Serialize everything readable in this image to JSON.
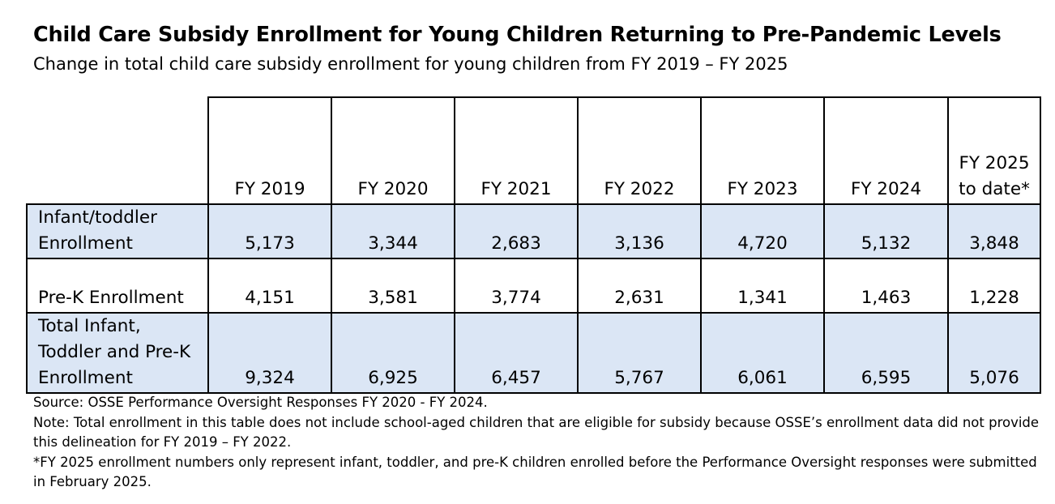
{
  "title": "Child Care Subsidy Enrollment for Young Children Returning to Pre-Pandemic Levels",
  "subtitle": "Change in total child care subsidy enrollment for young children from FY 2019 – FY 2025",
  "chart_data": {
    "type": "table",
    "columns": [
      "FY 2019",
      "FY 2020",
      "FY 2021",
      "FY 2022",
      "FY 2023",
      "FY 2024",
      "FY 2025 to date*"
    ],
    "rows": [
      {
        "label": "Infant/toddler Enrollment",
        "values": [
          "5,173",
          "3,344",
          "2,683",
          "3,136",
          "4,720",
          "5,132",
          "3,848"
        ]
      },
      {
        "label": "Pre-K Enrollment",
        "values": [
          "4,151",
          "3,581",
          "3,774",
          "2,631",
          "1,341",
          "1,463",
          "1,228"
        ]
      },
      {
        "label": "Total Infant, Toddler and Pre-K Enrollment",
        "values": [
          "9,324",
          "6,925",
          "6,457",
          "5,767",
          "6,061",
          "6,595",
          "5,076"
        ]
      }
    ]
  },
  "colors": {
    "shaded_row": "#dbe6f5",
    "border": "#000000"
  },
  "notes": {
    "source": "Source: OSSE Performance Oversight Responses FY 2020 - FY 2024.",
    "note": "Note: Total enrollment in this table does not include school-aged children that are eligible for subsidy because OSSE’s enrollment data did not provide this delineation for FY 2019 – FY 2022.",
    "footnote": "*FY 2025 enrollment numbers only represent infant, toddler, and pre-K children enrolled before the Performance Oversight responses were submitted in February 2025."
  }
}
